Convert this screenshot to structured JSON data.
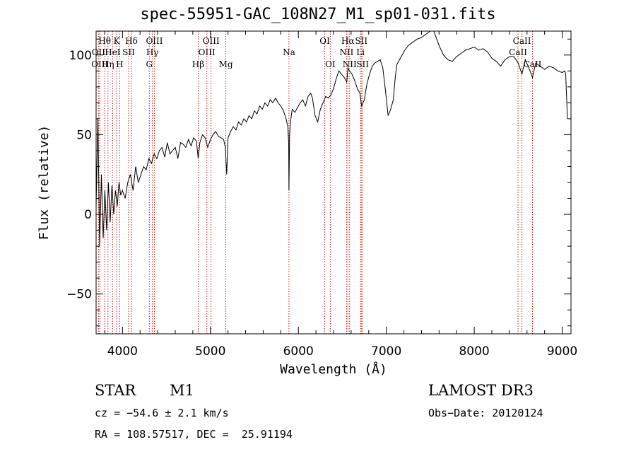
{
  "chart_data": {
    "type": "line",
    "title": "spec-55951-GAC_108N27_M1_sp01-031.fits",
    "xlabel": "Wavelength (Å)",
    "ylabel": "Flux (relative)",
    "xlim": [
      3700,
      9100
    ],
    "ylim": [
      -75,
      115
    ],
    "xticks": [
      4000,
      5000,
      6000,
      7000,
      8000,
      9000
    ],
    "yticks": [
      -50,
      0,
      50,
      100
    ],
    "series": [
      {
        "name": "spectrum",
        "x": [
          3700,
          3720,
          3740,
          3760,
          3780,
          3800,
          3820,
          3840,
          3860,
          3880,
          3900,
          3920,
          3940,
          3960,
          3980,
          4000,
          4030,
          4060,
          4090,
          4120,
          4150,
          4180,
          4210,
          4240,
          4270,
          4300,
          4330,
          4360,
          4390,
          4420,
          4450,
          4480,
          4510,
          4540,
          4570,
          4600,
          4630,
          4660,
          4690,
          4720,
          4750,
          4780,
          4810,
          4840,
          4861,
          4880,
          4910,
          4940,
          4970,
          5000,
          5030,
          5060,
          5090,
          5120,
          5150,
          5170,
          5185,
          5200,
          5230,
          5260,
          5290,
          5320,
          5350,
          5380,
          5410,
          5440,
          5470,
          5500,
          5530,
          5560,
          5590,
          5620,
          5650,
          5680,
          5710,
          5740,
          5770,
          5800,
          5830,
          5860,
          5880,
          5890,
          5893,
          5896,
          5900,
          5910,
          5930,
          5960,
          5990,
          6020,
          6050,
          6080,
          6110,
          6140,
          6160,
          6190,
          6220,
          6250,
          6280,
          6310,
          6340,
          6370,
          6400,
          6430,
          6460,
          6490,
          6520,
          6550,
          6563,
          6580,
          6610,
          6640,
          6670,
          6700,
          6720,
          6750,
          6780,
          6810,
          6840,
          6870,
          6900,
          6930,
          6960,
          6990,
          7020,
          7050,
          7080,
          7100,
          7120,
          7150,
          7180,
          7210,
          7250,
          7300,
          7350,
          7400,
          7450,
          7500,
          7540,
          7560,
          7600,
          7650,
          7700,
          7750,
          7800,
          7850,
          7900,
          7950,
          8000,
          8050,
          8100,
          8150,
          8200,
          8250,
          8300,
          8350,
          8400,
          8450,
          8500,
          8542,
          8580,
          8620,
          8662,
          8700,
          8750,
          8800,
          8850,
          8900,
          8950,
          9000,
          9030,
          9040,
          9060
        ],
        "y": [
          5,
          60,
          -20,
          25,
          -15,
          15,
          -10,
          20,
          -5,
          18,
          0,
          15,
          5,
          20,
          12,
          15,
          10,
          20,
          25,
          15,
          30,
          20,
          25,
          30,
          28,
          35,
          32,
          38,
          35,
          40,
          42,
          36,
          45,
          38,
          40,
          42,
          35,
          45,
          44,
          42,
          47,
          43,
          48,
          46,
          35,
          45,
          50,
          48,
          42,
          47,
          50,
          52,
          49,
          48,
          47,
          42,
          25,
          48,
          52,
          55,
          53,
          58,
          56,
          60,
          58,
          62,
          60,
          65,
          63,
          68,
          66,
          70,
          68,
          72,
          70,
          73,
          70,
          68,
          65,
          60,
          55,
          45,
          15,
          30,
          50,
          58,
          66,
          64,
          67,
          70,
          72,
          68,
          74,
          76,
          73,
          62,
          58,
          66,
          70,
          74,
          73,
          75,
          79,
          85,
          90,
          88,
          86,
          83,
          92,
          90,
          88,
          84,
          79,
          76,
          68,
          72,
          82,
          88,
          93,
          95,
          96,
          97,
          92,
          78,
          62,
          66,
          72,
          85,
          94,
          97,
          100,
          103,
          106,
          108,
          110,
          111,
          113,
          115,
          116,
          112,
          106,
          100,
          97,
          96,
          99,
          101,
          103,
          104,
          105,
          103,
          104,
          102,
          98,
          96,
          93,
          97,
          99,
          99,
          95,
          88,
          97,
          92,
          86,
          95,
          93,
          91,
          93,
          92,
          90,
          89,
          90,
          88,
          60
        ]
      }
    ],
    "line_markers": [
      {
        "name": "Hθ",
        "x": 3798,
        "row": 1
      },
      {
        "name": "OII",
        "x": 3727,
        "row": 2
      },
      {
        "name": "OIII",
        "x": 3742,
        "row": 3
      },
      {
        "name": "Hη",
        "x": 3835,
        "row": 3
      },
      {
        "name": "K",
        "x": 3934,
        "row": 1
      },
      {
        "name": "HeI",
        "x": 3888,
        "row": 2
      },
      {
        "name": "H",
        "x": 3968,
        "row": 3
      },
      {
        "name": "Hδ",
        "x": 4102,
        "row": 1
      },
      {
        "name": "SII",
        "x": 4070,
        "row": 2
      },
      {
        "name": "OIII",
        "x": 4363,
        "row": 1
      },
      {
        "name": "Hγ",
        "x": 4340,
        "row": 2
      },
      {
        "name": "G",
        "x": 4305,
        "row": 3
      },
      {
        "name": "Hβ",
        "x": 4861,
        "row": 3
      },
      {
        "name": "OIII",
        "x": 5007,
        "row": 1
      },
      {
        "name": "OIII",
        "x": 4959,
        "row": 2
      },
      {
        "name": "Mg",
        "x": 5175,
        "row": 3
      },
      {
        "name": "Na",
        "x": 5893,
        "row": 2
      },
      {
        "name": "OI",
        "x": 6300,
        "row": 1
      },
      {
        "name": "OI",
        "x": 6363,
        "row": 3
      },
      {
        "name": "Hα",
        "x": 6563,
        "row": 1
      },
      {
        "name": "NII",
        "x": 6548,
        "row": 2
      },
      {
        "name": "NII",
        "x": 6583,
        "row": 3
      },
      {
        "name": "SII",
        "x": 6716,
        "row": 1
      },
      {
        "name": "Li",
        "x": 6707,
        "row": 2
      },
      {
        "name": "SII",
        "x": 6731,
        "row": 3
      },
      {
        "name": "CaII",
        "x": 8542,
        "row": 1
      },
      {
        "name": "CaII",
        "x": 8498,
        "row": 2
      },
      {
        "name": "CaII",
        "x": 8662,
        "row": 3
      }
    ]
  },
  "info": {
    "class_label": "STAR",
    "subclass": "M1",
    "survey": "LAMOST DR3",
    "cz": "cz = −54.6 ± 2.1 km/s",
    "obs_date": "Obs−Date: 20120124",
    "coords": "RA = 108.57517, DEC =  25.91194"
  },
  "colors": {
    "spectrum": "#000000",
    "marker_line": "#cc2222",
    "axes": "#000000"
  }
}
